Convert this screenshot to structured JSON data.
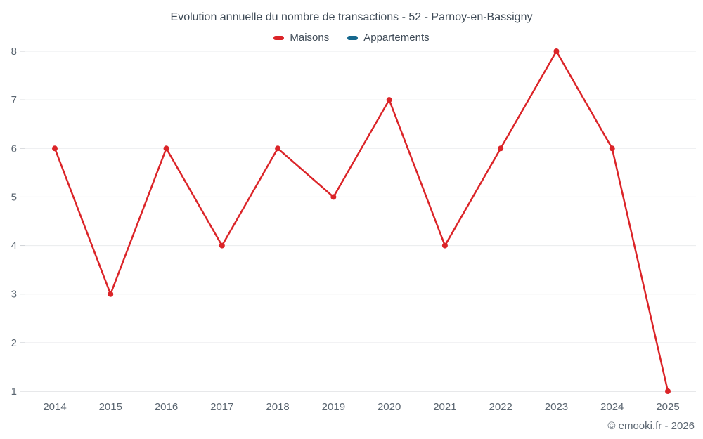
{
  "footer": {
    "copyright": "© emooki.fr - 2026"
  },
  "chart_data": {
    "type": "line",
    "title": "Evolution annuelle du nombre de transactions - 52 - Parnoy-en-Bassigny",
    "categories": [
      "2014",
      "2015",
      "2016",
      "2017",
      "2018",
      "2019",
      "2020",
      "2021",
      "2022",
      "2023",
      "2024",
      "2025"
    ],
    "series": [
      {
        "name": "Maisons",
        "color": "#db2428",
        "values": [
          6,
          3,
          6,
          4,
          6,
          5,
          7,
          4,
          6,
          8,
          6,
          1
        ]
      },
      {
        "name": "Appartements",
        "color": "#16688e",
        "values": []
      }
    ],
    "xlabel": "",
    "ylabel": "",
    "ylim": [
      1,
      8
    ],
    "yticks": [
      1,
      2,
      3,
      4,
      5,
      6,
      7,
      8
    ],
    "grid": "horizontal",
    "legend_position": "top"
  }
}
